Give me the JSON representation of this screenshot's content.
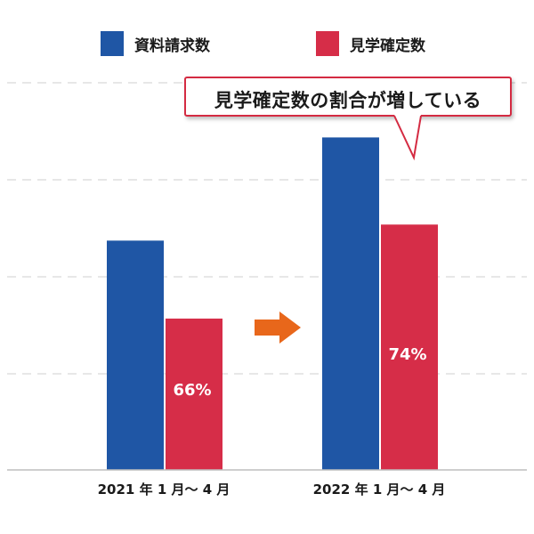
{
  "chart_data": {
    "type": "bar",
    "categories": [
      "2021 年 1 月〜 4 月",
      "2022 年 1 月〜 4 月"
    ],
    "series": [
      {
        "name": "資料請求数",
        "color": "#1f56a5",
        "values": [
          100,
          145
        ]
      },
      {
        "name": "見学確定数",
        "color": "#d62d48",
        "values": [
          66,
          107
        ]
      }
    ],
    "data_labels": [
      "66%",
      "74%"
    ],
    "grid": true,
    "legend": "top-center",
    "ylim": [
      0,
      170
    ],
    "annotation": "見学確定数の割合が増している",
    "arrow_color": "#e8671b"
  }
}
